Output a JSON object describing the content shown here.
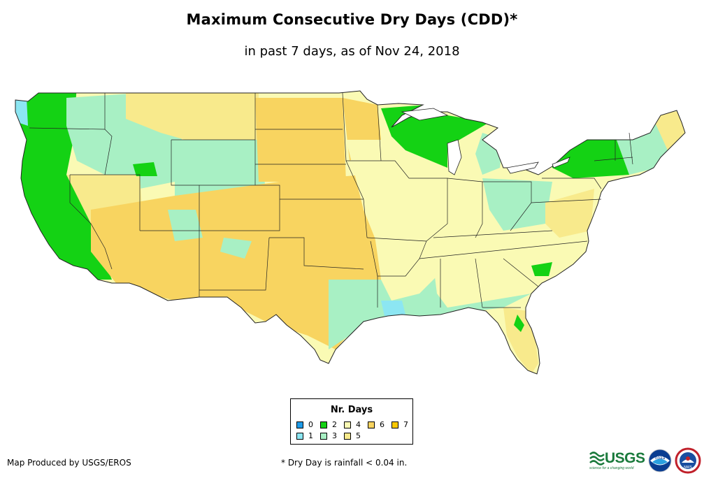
{
  "header": {
    "title": "Maximum Consecutive Dry Days (CDD)*",
    "subtitle": "in past 7 days, as of Nov 24, 2018"
  },
  "legend": {
    "title": "Nr. Days",
    "items": [
      {
        "label": "0",
        "color": "#1e9be8"
      },
      {
        "label": "1",
        "color": "#8ce6f2"
      },
      {
        "label": "2",
        "color": "#14d214"
      },
      {
        "label": "3",
        "color": "#a8f0c4"
      },
      {
        "label": "4",
        "color": "#fafab4"
      },
      {
        "label": "5",
        "color": "#f8ea8c"
      },
      {
        "label": "6",
        "color": "#f8d460"
      },
      {
        "label": "7",
        "color": "#f8c800"
      }
    ]
  },
  "footer": {
    "credit": "Map Produced by USGS/EROS",
    "note": "* Dry Day is rainfall < 0.04 in."
  },
  "logos": {
    "usgs": "USGS",
    "usgs_tagline": "science for a changing world",
    "noaa": "noaa",
    "nws": "NWS"
  },
  "colors": {
    "border": "#222222"
  }
}
